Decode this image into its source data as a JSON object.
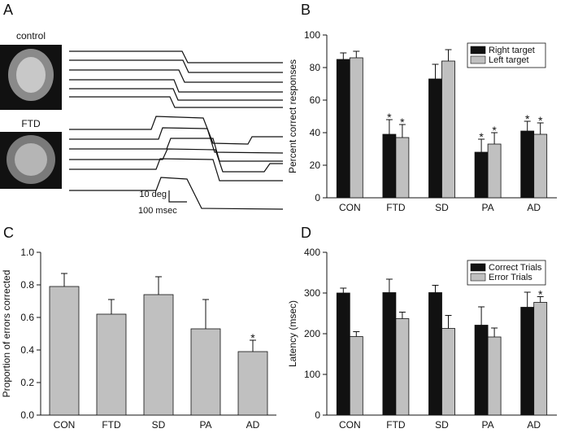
{
  "panel_a": {
    "panel": "A",
    "labels": [
      "control",
      "FTD"
    ],
    "scale_y": "10 deg",
    "scale_x": "100 msec"
  },
  "chart_data": [
    {
      "type": "bar",
      "panel": "B",
      "y_label": "Percent correct responses",
      "categories": [
        "CON",
        "FTD",
        "SD",
        "PA",
        "AD"
      ],
      "series": [
        {
          "name": "Right target",
          "color": "#111111",
          "values": [
            85,
            39,
            73,
            28,
            41
          ],
          "errors": [
            4,
            9,
            9,
            8,
            6
          ],
          "significance": [
            null,
            "*",
            null,
            "*",
            "*"
          ]
        },
        {
          "name": "Left target",
          "color": "#c0c0c0",
          "values": [
            86,
            37,
            84,
            33,
            39
          ],
          "errors": [
            4,
            8,
            7,
            7,
            7
          ],
          "significance": [
            null,
            "*",
            null,
            "*",
            "*"
          ]
        }
      ],
      "ylim": [
        0,
        100
      ],
      "yticks": [
        0,
        20,
        40,
        60,
        80,
        100
      ],
      "legend": "upper right"
    },
    {
      "type": "bar",
      "panel": "C",
      "y_label": "Proportion of errors corrected",
      "categories": [
        "CON",
        "FTD",
        "SD",
        "PA",
        "AD"
      ],
      "values": [
        0.79,
        0.62,
        0.74,
        0.53,
        0.39
      ],
      "errors": [
        0.08,
        0.09,
        0.11,
        0.18,
        0.07
      ],
      "significance": [
        null,
        null,
        null,
        null,
        "*"
      ],
      "color": "#c0c0c0",
      "ylim": [
        0,
        1
      ],
      "yticks": [
        {
          "value": 0,
          "label": "0.0"
        },
        0.2,
        0.4,
        0.6,
        0.8,
        {
          "value": 1,
          "label": "1.0"
        }
      ]
    },
    {
      "type": "bar",
      "panel": "D",
      "y_label": "Latency (msec)",
      "categories": [
        "CON",
        "FTD",
        "SD",
        "PA",
        "AD"
      ],
      "series": [
        {
          "name": "Correct Trials",
          "color": "#111111",
          "values": [
            300,
            301,
            301,
            221,
            265
          ],
          "errors": [
            12,
            33,
            18,
            45,
            37
          ],
          "significance": [
            null,
            null,
            null,
            null,
            null
          ]
        },
        {
          "name": "Error Trials",
          "color": "#c0c0c0",
          "values": [
            193,
            237,
            213,
            192,
            277
          ],
          "errors": [
            12,
            16,
            32,
            22,
            14
          ],
          "significance": [
            null,
            null,
            null,
            null,
            "*"
          ]
        }
      ],
      "ylim": [
        0,
        400
      ],
      "yticks": [
        0,
        100,
        200,
        300,
        400
      ],
      "legend": "upper right"
    }
  ]
}
